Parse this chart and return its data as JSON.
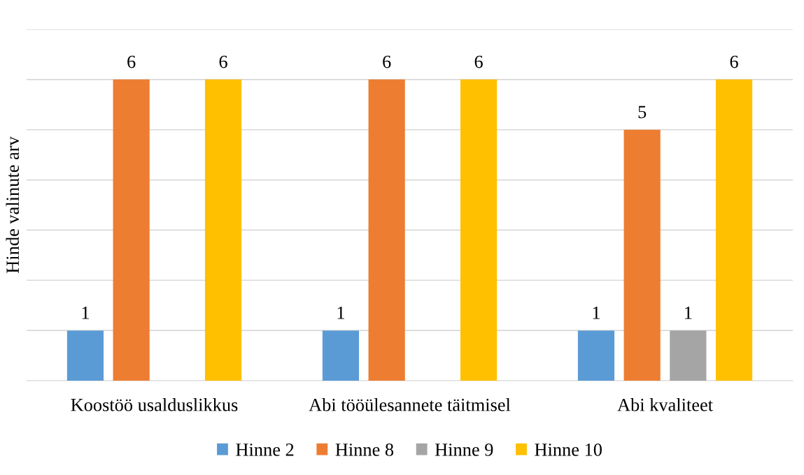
{
  "chart_data": {
    "type": "bar",
    "ylabel": "Hinde valinute arv",
    "categories": [
      "Koostöö usalduslikkus",
      "Abi tööülesannete täitmisel",
      "Abi kvaliteet"
    ],
    "series": [
      {
        "name": "Hinne 2",
        "color": "#5b9bd5",
        "values": [
          1,
          1,
          1
        ]
      },
      {
        "name": "Hinne 8",
        "color": "#ed7d31",
        "values": [
          6,
          6,
          5
        ]
      },
      {
        "name": "Hinne 9",
        "color": "#a5a5a5",
        "values": [
          null,
          null,
          1
        ]
      },
      {
        "name": "Hinne 10",
        "color": "#ffc000",
        "values": [
          6,
          6,
          6
        ]
      }
    ],
    "ylim": [
      0,
      7
    ],
    "yticks": [
      {
        "value": 0,
        "label": null
      },
      {
        "value": 1,
        "label": null
      },
      {
        "value": 2,
        "label": null
      },
      {
        "value": 3,
        "label": null
      },
      {
        "value": 4,
        "label": null
      },
      {
        "value": 5,
        "label": null
      },
      {
        "value": 6,
        "label": null
      },
      {
        "value": 7,
        "label": null
      }
    ],
    "tick_labels": "x",
    "grid": "y",
    "data_labels": true,
    "legend": "bottom"
  }
}
